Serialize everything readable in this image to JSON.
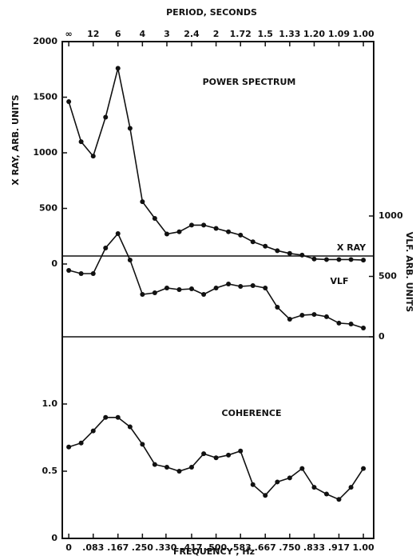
{
  "chart_data": [
    {
      "type": "line",
      "title": "POWER SPECTRUM",
      "x2label": "PERIOD, SECONDS",
      "x2ticks": [
        {
          "value": 0,
          "label": "∞"
        },
        {
          "value": 0.083,
          "label": "12"
        },
        {
          "value": 0.167,
          "label": "6"
        },
        {
          "value": 0.25,
          "label": "4"
        },
        {
          "value": 0.333,
          "label": "3"
        },
        {
          "value": 0.417,
          "label": "2.4"
        },
        {
          "value": 0.5,
          "label": "2"
        },
        {
          "value": 0.583,
          "label": "1.72"
        },
        {
          "value": 0.667,
          "label": "1.5"
        },
        {
          "value": 0.75,
          "label": "1.33"
        },
        {
          "value": 0.833,
          "label": "1.20"
        },
        {
          "value": 0.917,
          "label": "1.09"
        },
        {
          "value": 1.0,
          "label": "1.00"
        }
      ],
      "xlim": [
        -0.022,
        1.035
      ],
      "x": [
        0,
        0.042,
        0.083,
        0.125,
        0.167,
        0.208,
        0.25,
        0.292,
        0.333,
        0.375,
        0.417,
        0.458,
        0.5,
        0.542,
        0.583,
        0.625,
        0.667,
        0.708,
        0.75,
        0.792,
        0.833,
        0.875,
        0.917,
        0.958,
        1.0
      ],
      "ylabel": "X RAY, ARB. UNITS",
      "ylim": [
        0,
        2000
      ],
      "yticks": [
        0,
        500,
        1000,
        1500,
        2000
      ],
      "y2label": "VLF. ARB. UNITS",
      "y2lim": [
        0,
        1000
      ],
      "y2ticks": [
        0,
        500,
        1000
      ],
      "series": [
        {
          "name": "X RAY",
          "color": "#111111",
          "values": [
            1460,
            1100,
            970,
            1320,
            1760,
            1220,
            560,
            410,
            270,
            290,
            350,
            350,
            320,
            290,
            260,
            200,
            160,
            120,
            95,
            80,
            45,
            40,
            40,
            40,
            35
          ]
        },
        {
          "name": "VLF",
          "color": "#111111",
          "axis": "y2",
          "values": [
            550,
            523,
            523,
            735,
            854,
            636,
            351,
            364,
            404,
            391,
            397,
            351,
            404,
            437,
            417,
            424,
            404,
            245,
            146,
            179,
            185,
            166,
            113,
            106,
            73
          ]
        }
      ]
    },
    {
      "type": "line",
      "title": "COHERENCE",
      "xlabel": "FREQUENCY , Hz",
      "xticks": [
        0,
        {
          "value": 0.083,
          "label": ".083"
        },
        {
          "value": 0.167,
          "label": ".167"
        },
        {
          "value": 0.25,
          "label": ".250"
        },
        {
          "value": 0.33,
          "label": ".330"
        },
        {
          "value": 0.417,
          "label": ".417"
        },
        {
          "value": 0.5,
          "label": ".500"
        },
        {
          "value": 0.583,
          "label": ".583"
        },
        {
          "value": 0.667,
          "label": ".667"
        },
        {
          "value": 0.75,
          "label": ".750"
        },
        {
          "value": 0.833,
          "label": ".833"
        },
        {
          "value": 0.917,
          "label": ".917"
        },
        {
          "value": 1.0,
          "label": "1.00"
        }
      ],
      "xlim": [
        -0.022,
        1.035
      ],
      "x": [
        0,
        0.042,
        0.083,
        0.125,
        0.167,
        0.208,
        0.25,
        0.292,
        0.333,
        0.375,
        0.417,
        0.458,
        0.5,
        0.542,
        0.583,
        0.625,
        0.667,
        0.708,
        0.75,
        0.792,
        0.833,
        0.875,
        0.917,
        0.958,
        1.0
      ],
      "ylim": [
        0,
        1.5
      ],
      "yticks": [
        0,
        0.5,
        {
          "value": 1.0,
          "label": "1.0"
        }
      ],
      "series": [
        {
          "color": "#111111",
          "values": [
            0.68,
            0.71,
            0.8,
            0.9,
            0.9,
            0.83,
            0.7,
            0.55,
            0.53,
            0.5,
            0.53,
            0.63,
            0.6,
            0.62,
            0.65,
            0.4,
            0.32,
            0.42,
            0.45,
            0.52,
            0.38,
            0.33,
            0.29,
            0.38,
            0.52
          ]
        }
      ]
    }
  ]
}
